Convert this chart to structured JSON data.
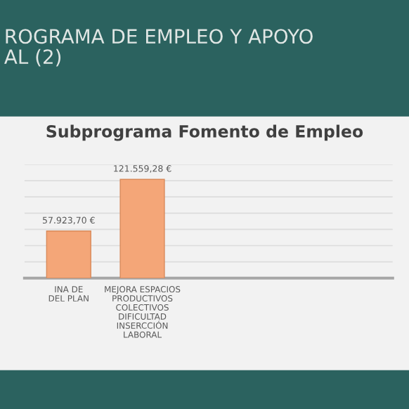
{
  "chart_data": {
    "type": "bar",
    "title": "Subprograma Fomento de Empleo",
    "subtitle": "ROGRAMA DE EMPLEO Y APOYO\nAL (2)",
    "categories": [
      "INA DE\nDEL PLAN",
      "MEJORA ESPACIOS\nPRODUCTIVOS\nCOLECTIVOS\nDIFICULTAD\nINSERCCIÓN\nLABORAL"
    ],
    "values": [
      57923.7,
      121559.28
    ],
    "value_labels": [
      "57.923,70 €",
      "121.559,28 €"
    ],
    "color": "#f4a678",
    "ylim": [
      0,
      140000
    ],
    "yticks": [
      {
        "value": 0,
        "label": null
      },
      {
        "value": 20000,
        "label": null
      },
      {
        "value": 40000,
        "label": null
      },
      {
        "value": 60000,
        "label": null
      },
      {
        "value": 80000,
        "label": null
      },
      {
        "value": 100000,
        "label": null
      },
      {
        "value": 120000,
        "label": null
      },
      {
        "value": 140000,
        "label": null
      }
    ],
    "grid": "y",
    "tick_labels": "x"
  }
}
